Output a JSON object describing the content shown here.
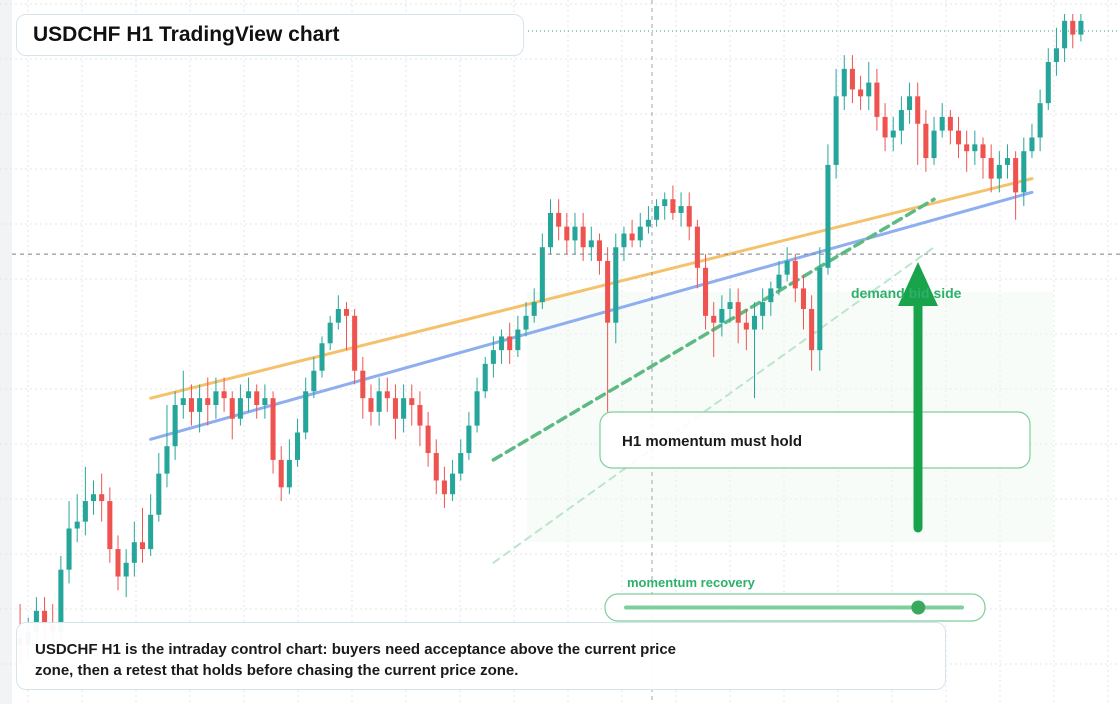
{
  "title": "USDCHF H1 TradingView chart",
  "caption": "USDCHF H1 is the intraday control chart: buyers need acceptance above the current price zone, then a retest that holds before chasing the current price zone.",
  "chart_data": {
    "type": "candlestick",
    "symbol": "USDCHF",
    "timeframe": "H1",
    "y_axis": {
      "min": 0.0,
      "max": 100.0,
      "note": "price axis has no printed tick labels; values are relative price units"
    },
    "grid": true,
    "current_price": 65.0,
    "candles": [
      [
        9,
        8,
        14,
        5
      ],
      [
        8,
        10,
        12,
        6
      ],
      [
        10,
        13,
        15,
        8
      ],
      [
        13,
        11,
        15,
        9
      ],
      [
        11,
        10,
        14,
        7
      ],
      [
        10,
        19,
        21,
        9
      ],
      [
        19,
        25,
        29,
        17
      ],
      [
        25,
        26,
        30,
        23
      ],
      [
        26,
        29,
        34,
        24
      ],
      [
        29,
        30,
        32,
        27
      ],
      [
        30,
        29,
        33,
        26
      ],
      [
        29,
        22,
        31,
        20
      ],
      [
        22,
        18,
        24,
        16
      ],
      [
        18,
        20,
        22,
        15
      ],
      [
        20,
        23,
        26,
        18
      ],
      [
        23,
        22,
        28,
        20
      ],
      [
        22,
        27,
        30,
        21
      ],
      [
        27,
        33,
        36,
        26
      ],
      [
        33,
        37,
        43,
        31
      ],
      [
        37,
        43,
        45,
        35
      ],
      [
        43,
        44,
        48,
        41
      ],
      [
        44,
        42,
        46,
        40
      ],
      [
        42,
        44,
        46,
        39
      ],
      [
        44,
        43,
        47,
        40
      ],
      [
        43,
        45,
        47,
        41
      ],
      [
        45,
        44,
        47,
        42
      ],
      [
        44,
        41,
        45,
        38
      ],
      [
        41,
        44,
        46,
        40
      ],
      [
        44,
        45,
        47,
        42
      ],
      [
        45,
        43,
        46,
        41
      ],
      [
        43,
        44,
        46,
        41
      ],
      [
        44,
        35,
        45,
        33
      ],
      [
        35,
        31,
        37,
        29
      ],
      [
        31,
        35,
        38,
        30
      ],
      [
        35,
        39,
        41,
        34
      ],
      [
        39,
        45,
        47,
        38
      ],
      [
        45,
        48,
        50,
        44
      ],
      [
        48,
        52,
        53,
        47
      ],
      [
        52,
        55,
        56,
        51
      ],
      [
        55,
        57,
        59,
        54
      ],
      [
        57,
        56,
        58,
        51
      ],
      [
        56,
        48,
        57,
        46
      ],
      [
        48,
        44,
        50,
        41
      ],
      [
        44,
        42,
        46,
        40
      ],
      [
        42,
        45,
        47,
        40
      ],
      [
        45,
        44,
        47,
        42
      ],
      [
        44,
        41,
        46,
        38
      ],
      [
        41,
        44,
        46,
        39
      ],
      [
        44,
        43,
        46,
        40
      ],
      [
        43,
        40,
        45,
        37
      ],
      [
        40,
        36,
        42,
        34
      ],
      [
        36,
        32,
        38,
        30
      ],
      [
        32,
        30,
        34,
        28
      ],
      [
        30,
        33,
        35,
        29
      ],
      [
        33,
        36,
        38,
        32
      ],
      [
        36,
        40,
        42,
        35
      ],
      [
        40,
        45,
        47,
        39
      ],
      [
        45,
        49,
        50,
        44
      ],
      [
        49,
        51,
        53,
        47
      ],
      [
        51,
        53,
        54,
        49
      ],
      [
        53,
        51,
        55,
        49
      ],
      [
        51,
        54,
        56,
        50
      ],
      [
        54,
        56,
        58,
        53
      ],
      [
        56,
        58,
        60,
        55
      ],
      [
        58,
        66,
        68,
        57
      ],
      [
        66,
        71,
        73,
        65
      ],
      [
        71,
        69,
        73,
        67
      ],
      [
        69,
        67,
        71,
        65
      ],
      [
        67,
        69,
        71,
        65
      ],
      [
        69,
        66,
        71,
        64
      ],
      [
        66,
        67,
        69,
        64
      ],
      [
        67,
        64,
        68,
        62
      ],
      [
        64,
        55,
        66,
        42
      ],
      [
        55,
        66,
        68,
        52
      ],
      [
        66,
        68,
        69,
        64
      ],
      [
        68,
        67,
        70,
        66
      ],
      [
        67,
        69,
        71,
        66
      ],
      [
        69,
        70,
        72,
        68
      ],
      [
        70,
        72,
        73,
        69
      ],
      [
        72,
        73,
        74,
        70
      ],
      [
        73,
        71,
        75,
        70
      ],
      [
        71,
        72,
        74,
        69
      ],
      [
        72,
        69,
        74,
        67
      ],
      [
        69,
        63,
        70,
        60
      ],
      [
        63,
        56,
        65,
        54
      ],
      [
        56,
        55,
        58,
        50
      ],
      [
        55,
        57,
        59,
        53
      ],
      [
        57,
        58,
        60,
        55
      ],
      [
        58,
        55,
        60,
        52
      ],
      [
        55,
        54,
        57,
        51
      ],
      [
        54,
        56,
        58,
        44
      ],
      [
        56,
        58,
        60,
        54
      ],
      [
        58,
        60,
        61,
        56
      ],
      [
        60,
        62,
        64,
        59
      ],
      [
        62,
        64,
        66,
        61
      ],
      [
        64,
        60,
        65,
        58
      ],
      [
        60,
        57,
        62,
        54
      ],
      [
        57,
        51,
        59,
        48
      ],
      [
        51,
        63,
        66,
        48
      ],
      [
        63,
        78,
        81,
        62
      ],
      [
        78,
        88,
        92,
        76
      ],
      [
        88,
        92,
        94,
        86
      ],
      [
        92,
        89,
        94,
        87
      ],
      [
        89,
        88,
        91,
        86
      ],
      [
        88,
        90,
        93,
        86
      ],
      [
        90,
        85,
        92,
        83
      ],
      [
        85,
        82,
        87,
        80
      ],
      [
        82,
        83,
        85,
        80
      ],
      [
        83,
        86,
        88,
        81
      ],
      [
        86,
        88,
        90,
        84
      ],
      [
        88,
        84,
        90,
        78
      ],
      [
        84,
        79,
        86,
        77
      ],
      [
        79,
        83,
        85,
        78
      ],
      [
        83,
        85,
        87,
        82
      ],
      [
        85,
        83,
        86,
        81
      ],
      [
        83,
        81,
        85,
        79
      ],
      [
        81,
        80,
        83,
        77
      ],
      [
        80,
        81,
        83,
        78
      ],
      [
        81,
        79,
        82,
        76
      ],
      [
        79,
        76,
        81,
        74
      ],
      [
        76,
        78,
        80,
        74
      ],
      [
        78,
        79,
        81,
        76
      ],
      [
        79,
        74,
        80,
        70
      ],
      [
        74,
        80,
        82,
        72
      ],
      [
        80,
        82,
        84,
        79
      ],
      [
        82,
        87,
        89,
        80
      ],
      [
        87,
        93,
        95,
        86
      ],
      [
        93,
        95,
        98,
        91
      ],
      [
        95,
        99,
        100,
        93
      ],
      [
        99,
        97,
        100,
        95
      ],
      [
        97,
        99,
        100,
        96
      ]
    ],
    "lines": [
      {
        "name": "orange trendline",
        "color": "#f5c26b",
        "from": [
          16,
          44
        ],
        "to": [
          124,
          76
        ]
      },
      {
        "name": "blue trendline",
        "color": "#8eaef0",
        "from": [
          16,
          38
        ],
        "to": [
          124,
          74
        ]
      },
      {
        "name": "green dashed",
        "color": "#5cba82",
        "from": [
          58,
          35
        ],
        "to": [
          112,
          73
        ]
      },
      {
        "name": "green dashed light",
        "color": "#bde5cb",
        "from": [
          58,
          20
        ],
        "to": [
          112,
          66
        ]
      }
    ],
    "annotations": [
      {
        "name": "arrow-label",
        "text": "demand bid side",
        "color": "#2db06a"
      },
      {
        "name": "momentum-box",
        "text": "H1 momentum must hold"
      },
      {
        "name": "slider",
        "text": "momentum recovery",
        "value": 0.87
      }
    ]
  },
  "colors": {
    "up": "#26a69a",
    "down": "#ef5350",
    "grid": "#e3e6ea",
    "accent": "#19a34a",
    "crosshair": "#7a7f86",
    "slider_track": "#7fcf9b",
    "slider_knob": "#3aa95e"
  }
}
